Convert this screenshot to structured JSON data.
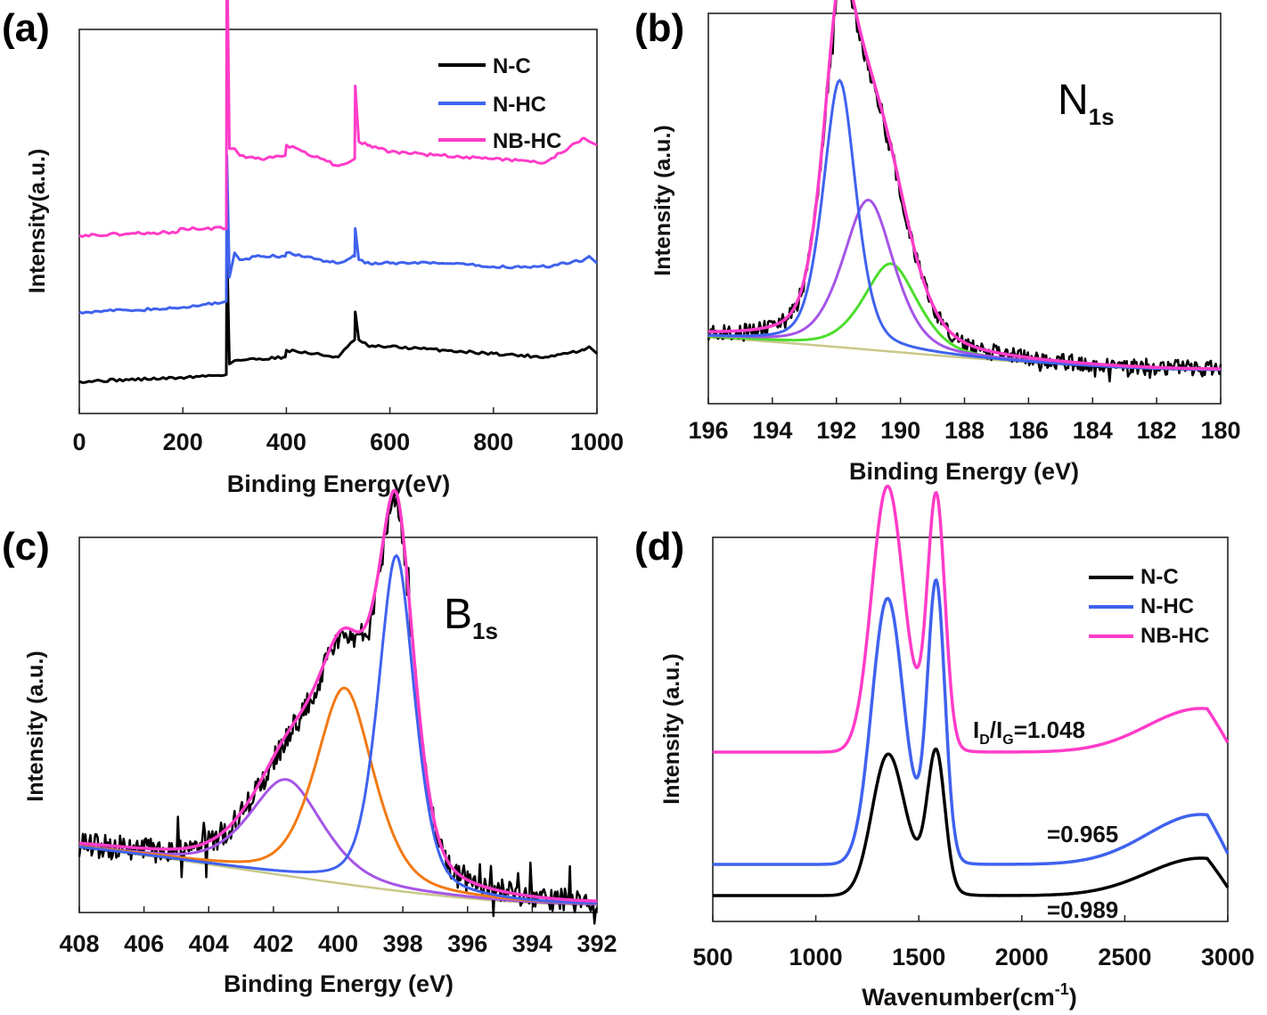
{
  "figure": {
    "colors": {
      "N-C": "#000000",
      "N-HC": "#3f62ee",
      "NB-HC": "#ff3cc8",
      "purple": "#a555e6",
      "green": "#4cdd2c",
      "orange": "#f27a14",
      "baseline": "#c9c98a"
    }
  },
  "chart_data": [
    {
      "panel": "(a)",
      "type": "line",
      "xlabel": "Binding Energy(eV)",
      "ylabel": "Intensity(a.u.)",
      "xlim": [
        0,
        1000
      ],
      "xticks": [
        0,
        200,
        400,
        600,
        800,
        1000
      ],
      "tick_labels": [
        "0",
        "200",
        "400",
        "600",
        "800",
        "1000"
      ],
      "legend": [
        "N-C",
        "N-HC",
        "NB-HC"
      ],
      "legend_position": "top-right",
      "series": [
        {
          "name": "N-C",
          "offset": 0.0,
          "x": [
            0,
            190,
            284,
            285,
            290,
            300,
            398,
            400,
            500,
            532,
            533,
            540,
            560,
            600,
            700,
            800,
            900,
            975,
            985,
            1000
          ],
          "y": [
            0.0,
            0.01,
            0.02,
            0.4,
            0.05,
            0.06,
            0.07,
            0.09,
            0.07,
            0.12,
            0.2,
            0.12,
            0.1,
            0.1,
            0.09,
            0.08,
            0.07,
            0.09,
            0.1,
            0.08
          ]
        },
        {
          "name": "N-HC",
          "offset": 0.2,
          "x": [
            0,
            190,
            284,
            285,
            290,
            300,
            310,
            350,
            398,
            400,
            500,
            532,
            533,
            540,
            560,
            600,
            700,
            800,
            900,
            975,
            985,
            1000
          ],
          "y": [
            0.0,
            0.01,
            0.03,
            0.45,
            0.1,
            0.17,
            0.15,
            0.16,
            0.16,
            0.17,
            0.14,
            0.16,
            0.24,
            0.15,
            0.14,
            0.14,
            0.14,
            0.13,
            0.13,
            0.15,
            0.16,
            0.14
          ]
        },
        {
          "name": "NB-HC",
          "offset": 0.42,
          "x": [
            0,
            190,
            195,
            284,
            285,
            290,
            300,
            310,
            350,
            398,
            400,
            500,
            532,
            533,
            540,
            560,
            600,
            700,
            800,
            900,
            975,
            985,
            1000
          ],
          "y": [
            0.0,
            0.01,
            0.02,
            0.02,
            0.88,
            0.25,
            0.25,
            0.23,
            0.22,
            0.23,
            0.26,
            0.2,
            0.22,
            0.43,
            0.27,
            0.26,
            0.24,
            0.23,
            0.22,
            0.21,
            0.28,
            0.27,
            0.26
          ]
        }
      ]
    },
    {
      "panel": "(b)",
      "type": "line",
      "title_main": "N",
      "title_sub": "1s",
      "xlabel": "Binding Energy (eV)",
      "ylabel": "Intensity (a.u.)",
      "xlim": [
        196,
        180
      ],
      "xticks": [
        196,
        194,
        192,
        190,
        188,
        186,
        184,
        182,
        180
      ],
      "tick_labels": [
        "196",
        "194",
        "192",
        "190",
        "188",
        "186",
        "184",
        "182",
        "180"
      ],
      "baseline": {
        "high": 0.1,
        "low": 0.0
      },
      "components": [
        {
          "name": "raw",
          "color": "N-C",
          "noise": 0.025
        },
        {
          "name": "envelope",
          "color": "NB-HC",
          "center": 191.8,
          "height": 1.0
        },
        {
          "name": "peak-1",
          "color": "N-HC",
          "center": 191.9,
          "height": 0.82,
          "width": 0.55
        },
        {
          "name": "peak-2",
          "color": "purple",
          "center": 191.0,
          "height": 0.46,
          "width": 0.85
        },
        {
          "name": "peak-3",
          "color": "green",
          "center": 190.3,
          "height": 0.27,
          "width": 0.9
        }
      ]
    },
    {
      "panel": "(c)",
      "type": "line",
      "title_main": "B",
      "title_sub": "1s",
      "xlabel": "Binding Energy (eV)",
      "ylabel": "Intensity (a.u.)",
      "xlim": [
        408,
        392
      ],
      "xticks": [
        408,
        406,
        404,
        402,
        400,
        398,
        396,
        394,
        392
      ],
      "tick_labels": [
        "408",
        "406",
        "404",
        "402",
        "400",
        "398",
        "396",
        "394",
        "392"
      ],
      "baseline": {
        "high": 0.16,
        "low": 0.0
      },
      "components": [
        {
          "name": "raw",
          "color": "N-C",
          "noise": 0.035
        },
        {
          "name": "envelope",
          "color": "NB-HC",
          "center": 398.2,
          "height": 1.0
        },
        {
          "name": "peak-1",
          "color": "N-HC",
          "center": 398.2,
          "height": 0.94,
          "width": 0.6
        },
        {
          "name": "peak-2",
          "color": "orange",
          "center": 399.8,
          "height": 0.55,
          "width": 0.95
        },
        {
          "name": "peak-3",
          "color": "purple",
          "center": 401.6,
          "height": 0.27,
          "width": 1.2
        }
      ]
    },
    {
      "panel": "(d)",
      "type": "line",
      "xlabel": "Wavenumber(cm",
      "xlabel_sup": "-1",
      "xlabel_end": ")",
      "ylabel": "Intensity (a.u.)",
      "xlim": [
        500,
        3000
      ],
      "xticks": [
        500,
        1000,
        1500,
        2000,
        2500,
        3000
      ],
      "tick_labels": [
        "500",
        "1000",
        "1500",
        "2000",
        "2500",
        "3000"
      ],
      "legend": [
        "N-C",
        "N-HC",
        "NB-HC"
      ],
      "legend_position": "top-right",
      "annotations": {
        "nbhc_prefix": "I",
        "nbhc_sub_d": "D",
        "nbhc_slash": "/I",
        "nbhc_sub_g": "G",
        "nbhc_value": "=1.048",
        "nhc": "=0.965",
        "nc": "=0.989"
      },
      "series": [
        {
          "name": "N-C",
          "offset": 0.0,
          "D_center": 1345,
          "D_height": 0.2,
          "G_center": 1585,
          "G_height": 0.21,
          "bump2d": 0.06
        },
        {
          "name": "N-HC",
          "offset": 0.05,
          "D_center": 1345,
          "D_height": 0.4,
          "G_center": 1585,
          "G_height": 0.43,
          "bump2d": 0.08
        },
        {
          "name": "NB-HC",
          "offset": 0.23,
          "D_center": 1345,
          "D_height": 0.4,
          "G_center": 1585,
          "G_height": 0.39,
          "bump2d": 0.07
        }
      ]
    }
  ]
}
